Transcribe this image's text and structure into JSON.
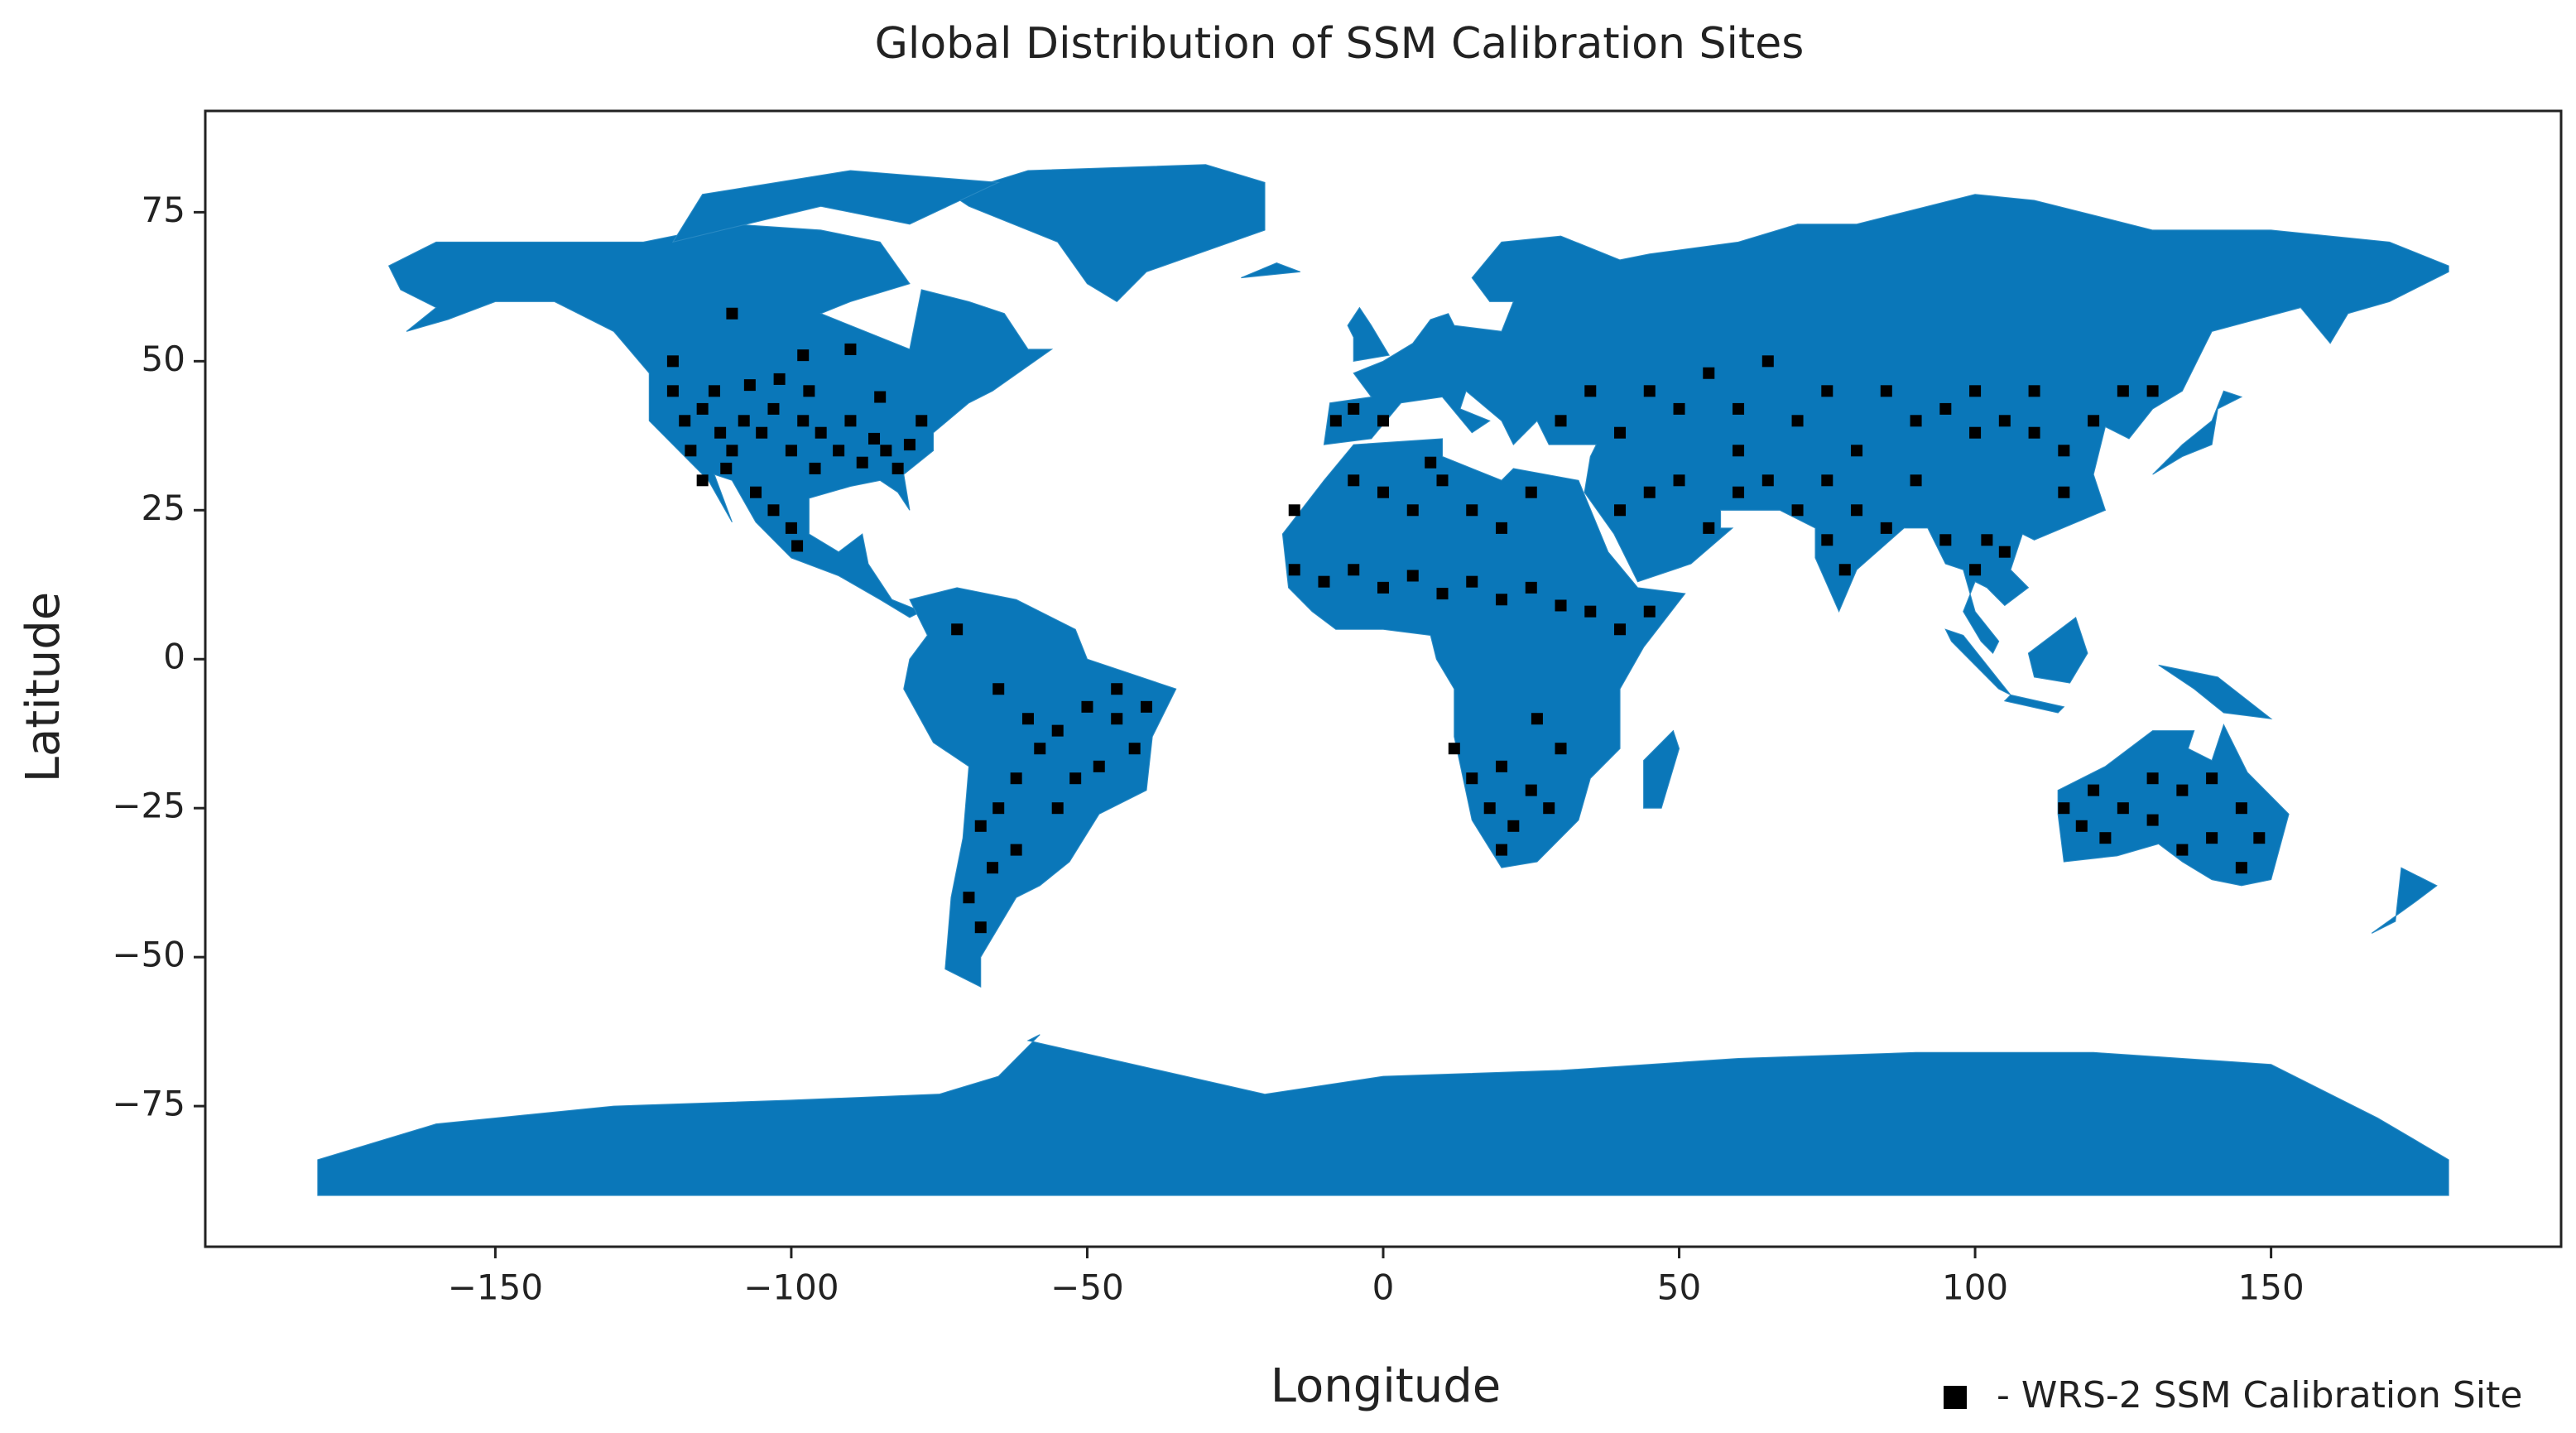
{
  "chart_data": {
    "type": "scatter",
    "title": "Global Distribution of SSM Calibration Sites",
    "x_label": "Longitude",
    "y_label": "Latitude",
    "xlim": [
      -199,
      199
    ],
    "ylim": [
      -98.6,
      92
    ],
    "xticks": [
      {
        "value": -150,
        "label": "−150"
      },
      {
        "value": -100,
        "label": "−100"
      },
      {
        "value": -50,
        "label": "−50"
      },
      0,
      50,
      100,
      150
    ],
    "yticks": [
      {
        "value": -75,
        "label": "−75"
      },
      {
        "value": -50,
        "label": "−50"
      },
      {
        "value": -25,
        "label": "−25"
      },
      0,
      25,
      50,
      75
    ],
    "legend": "lower right",
    "series": [
      {
        "name": "- WRS-2 SSM Calibration Site",
        "color": "#000000",
        "x": [
          -120,
          -118,
          -115,
          -112,
          -110,
          -108,
          -105,
          -103,
          -100,
          -98,
          -96,
          -95,
          -92,
          -90,
          -88,
          -86,
          -84,
          -82,
          -80,
          -117,
          -113,
          -107,
          -102,
          -97,
          -111,
          -106,
          -103,
          -100,
          -99,
          -115,
          -120,
          -98,
          -90,
          -85,
          -78,
          -110,
          -65,
          -60,
          -55,
          -50,
          -45,
          -42,
          -48,
          -52,
          -58,
          -62,
          -65,
          -68,
          -62,
          -66,
          -70,
          -68,
          -45,
          -40,
          -55,
          -72,
          -15,
          -10,
          -5,
          0,
          5,
          10,
          15,
          20,
          25,
          30,
          35,
          40,
          45,
          -5,
          0,
          5,
          10,
          15,
          20,
          25,
          -8,
          -5,
          0,
          -15,
          8,
          15,
          20,
          25,
          22,
          28,
          18,
          30,
          26,
          12,
          20,
          40,
          45,
          50,
          55,
          60,
          65,
          70,
          75,
          78,
          80,
          85,
          90,
          95,
          100,
          102,
          105,
          75,
          70,
          60,
          50,
          40,
          30,
          35,
          45,
          55,
          65,
          75,
          85,
          90,
          95,
          100,
          105,
          110,
          115,
          120,
          125,
          130,
          110,
          100,
          115,
          60,
          80,
          115,
          120,
          125,
          130,
          135,
          140,
          145,
          148,
          140,
          130,
          122,
          118,
          135,
          145
        ],
        "y": [
          45,
          40,
          42,
          38,
          35,
          40,
          38,
          42,
          35,
          40,
          32,
          38,
          35,
          40,
          33,
          37,
          35,
          32,
          36,
          35,
          45,
          46,
          47,
          45,
          32,
          28,
          25,
          22,
          19,
          30,
          50,
          51,
          52,
          44,
          40,
          58,
          -5,
          -10,
          -12,
          -8,
          -10,
          -15,
          -18,
          -20,
          -15,
          -20,
          -25,
          -28,
          -32,
          -35,
          -40,
          -45,
          -5,
          -8,
          -25,
          5,
          15,
          13,
          15,
          12,
          14,
          11,
          13,
          10,
          12,
          9,
          8,
          5,
          8,
          30,
          28,
          25,
          30,
          25,
          22,
          28,
          40,
          42,
          40,
          25,
          33,
          -20,
          -18,
          -22,
          -28,
          -25,
          -25,
          -15,
          -10,
          -15,
          -32,
          25,
          28,
          30,
          22,
          28,
          30,
          25,
          20,
          15,
          25,
          22,
          30,
          20,
          15,
          20,
          18,
          30,
          40,
          42,
          42,
          38,
          40,
          45,
          45,
          48,
          50,
          45,
          45,
          40,
          42,
          45,
          40,
          38,
          35,
          40,
          45,
          45,
          45,
          38,
          28,
          35,
          35,
          -25,
          -22,
          -25,
          -20,
          -22,
          -20,
          -25,
          -30,
          -30,
          -27,
          -30,
          -28,
          -32,
          -35
        ]
      }
    ]
  }
}
